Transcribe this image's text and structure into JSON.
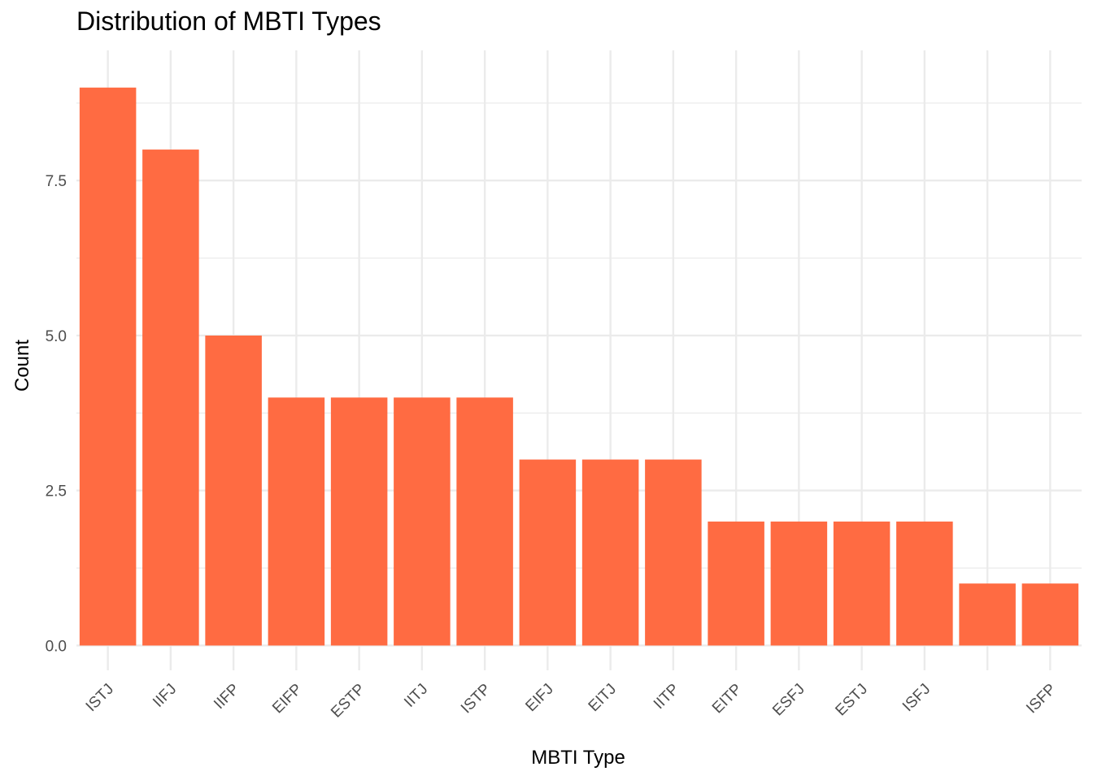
{
  "chart_data": {
    "type": "bar",
    "title": "Distribution of MBTI Types",
    "xlabel": "MBTI Type",
    "ylabel": "Count",
    "categories": [
      "ISTJ",
      "IIFJ",
      "IIFP",
      "EIFP",
      "ESTP",
      "IITJ",
      "ISTP",
      "EIFJ",
      "EITJ",
      "IITP",
      "EITP",
      "ESFJ",
      "ESTJ",
      "ISFJ",
      "",
      "ISFP"
    ],
    "values": [
      9,
      8,
      5,
      4,
      4,
      4,
      4,
      3,
      3,
      3,
      2,
      2,
      2,
      2,
      1,
      1
    ],
    "ylim": [
      -0.4,
      9.6
    ],
    "y_ticks": [
      0,
      2.5,
      5,
      7.5
    ],
    "y_tick_labels": [
      "0.0",
      "2.5",
      "5.0",
      "7.5"
    ],
    "bar_color": "#FF6B42",
    "grid": true,
    "legend": "none"
  }
}
